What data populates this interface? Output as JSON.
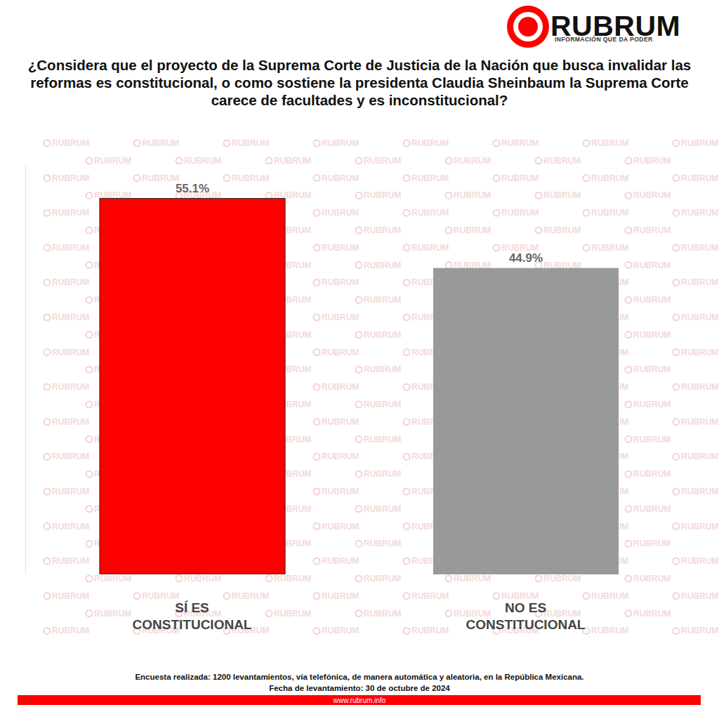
{
  "chart_data": {
    "type": "bar",
    "title": "¿Considera que el proyecto de la Suprema Corte de Justicia de la Nación que busca invalidar las reformas es constitucional, o como sostiene la presidenta Claudia Sheinbaum la Suprema Corte carece de facultades y es inconstitucional?",
    "categories": [
      "SÍ ES CONSTITUCIONAL",
      "NO ES CONSTITUCIONAL"
    ],
    "values": [
      55.1,
      44.9
    ],
    "value_labels": [
      "55.1%",
      "44.9%"
    ],
    "colors": [
      "#ff0000",
      "#999999"
    ],
    "ylim": [
      0,
      60
    ],
    "yticks": [],
    "grid": false,
    "data_labels": true,
    "tick_labels": false
  },
  "logo": {
    "name": "RUBRUM",
    "tagline": "INFORMACIÓN QUE DA PODER"
  },
  "watermark": "RUBRUM",
  "footer": {
    "notes": [
      "Encuesta realizada: 1200 levantamientos, vía telefónica, de manera automática y aleatoria, en la República Mexicana.",
      "Fecha de levantamiento: 30 de octubre de 2024"
    ],
    "url": "www.rubrum.info"
  }
}
